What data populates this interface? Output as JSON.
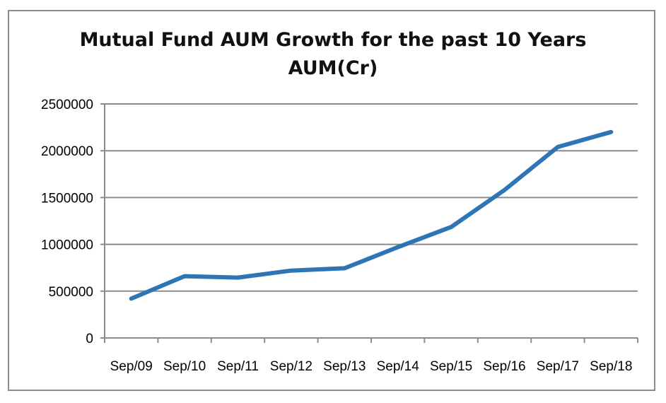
{
  "chart_data": {
    "type": "line",
    "title": "Mutual Fund AUM Growth for the past 10 Years",
    "subtitle": "AUM(Cr)",
    "categories": [
      "Sep/09",
      "Sep/10",
      "Sep/11",
      "Sep/12",
      "Sep/13",
      "Sep/14",
      "Sep/15",
      "Sep/16",
      "Sep/17",
      "Sep/18"
    ],
    "series": [
      {
        "name": "AUM(Cr)",
        "color": "#2e75b6",
        "values": [
          420000,
          660000,
          645000,
          720000,
          745000,
          970000,
          1185000,
          1580000,
          2040000,
          2200000
        ]
      }
    ],
    "yticks": [
      0,
      500000,
      1000000,
      1500000,
      2000000,
      2500000
    ],
    "ytick_labels": [
      "0",
      "500000",
      "1000000",
      "1500000",
      "2000000",
      "2500000"
    ],
    "ylim": [
      0,
      2500000
    ],
    "grid": true,
    "legend": "none"
  }
}
